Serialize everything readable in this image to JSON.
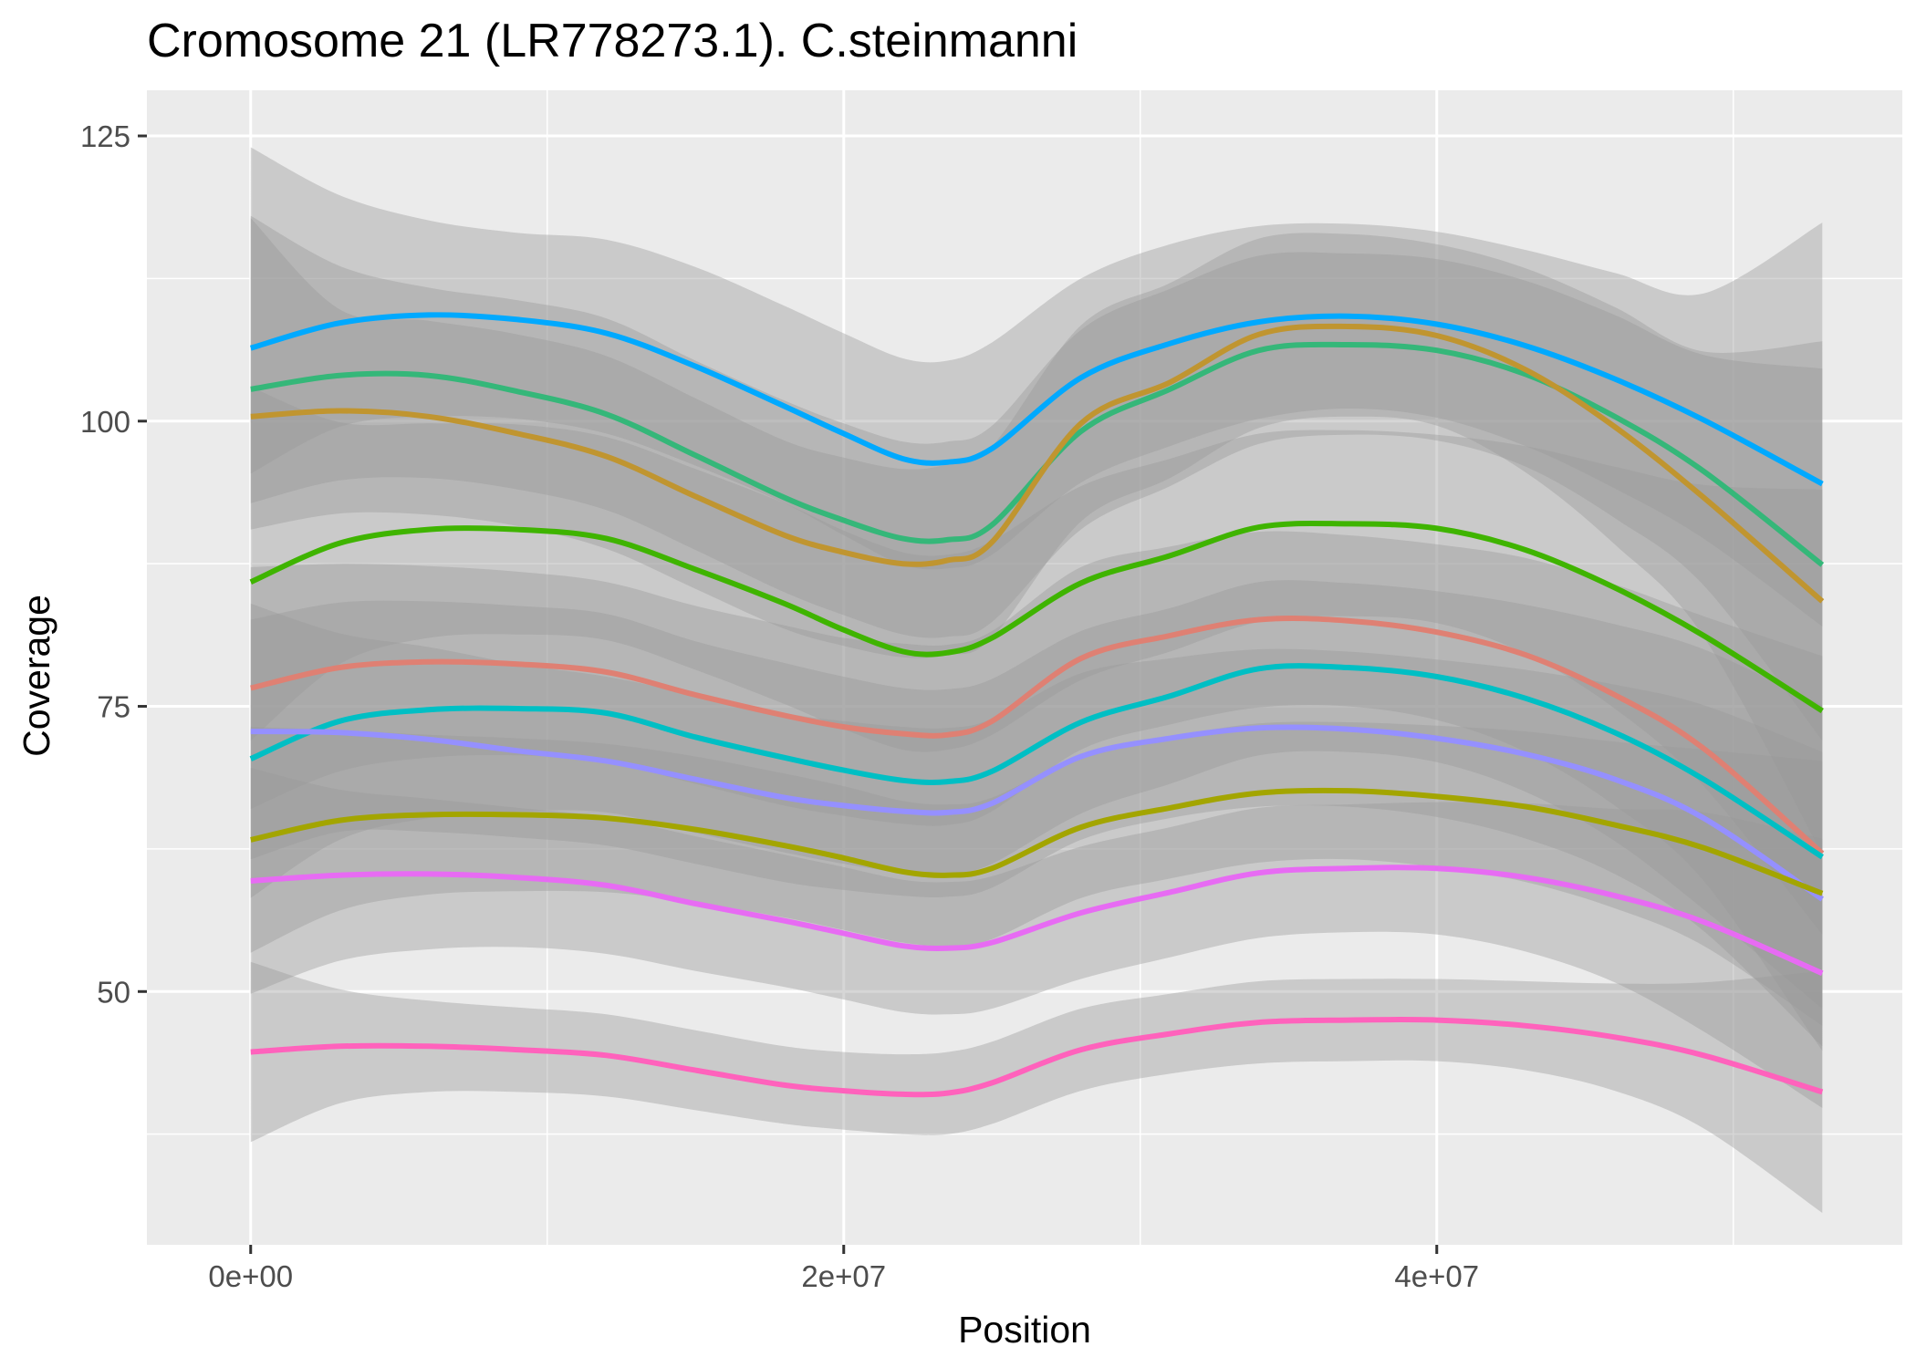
{
  "chart_data": {
    "type": "line",
    "title": "Cromosome 21 (LR778273.1). C.steinmanni",
    "xlabel": "Position",
    "ylabel": "Coverage",
    "xlim": [
      -3500000,
      55700000
    ],
    "ylim": [
      27800,
      129000
    ],
    "y_scale_divisor": 1000,
    "x_ticks": [
      0,
      20000000,
      40000000
    ],
    "x_tick_labels": [
      "0e+00",
      "2e+07",
      "4e+07"
    ],
    "x_minor_ticks": [
      10000000,
      30000000,
      50000000
    ],
    "y_ticks": [
      50000,
      75000,
      100000,
      125000
    ],
    "y_tick_labels": [
      "50",
      "75",
      "100",
      "125"
    ],
    "y_minor_ticks": [
      37500,
      62500,
      87500,
      112500
    ],
    "grid": true,
    "legend": "none",
    "panel_color": "#ebebeb",
    "ribbon_color": "#999999",
    "x": [
      0,
      3000000,
      6000000,
      9000000,
      12000000,
      15000000,
      18000000,
      20000000,
      22000000,
      23500000,
      25000000,
      28000000,
      31000000,
      34000000,
      37000000,
      40000000,
      43000000,
      46000000,
      49000000,
      53000000
    ],
    "series": [
      {
        "color": "#00a9ff",
        "values": [
          106400,
          108600,
          109300,
          108900,
          107700,
          104800,
          101300,
          98900,
          96700,
          96400,
          97600,
          103800,
          106800,
          108700,
          109200,
          108500,
          106600,
          103700,
          100100,
          94500
        ],
        "lower": [
          95400,
          99500,
          100400,
          100200,
          98900,
          96100,
          92800,
          90000,
          87400,
          87100,
          88300,
          94600,
          97800,
          100200,
          101100,
          100300,
          97800,
          94100,
          89700,
          82000
        ],
        "upper": [
          124000,
          119800,
          117600,
          116500,
          115900,
          113500,
          110100,
          107700,
          105500,
          105300,
          106900,
          112500,
          115500,
          117100,
          117300,
          116600,
          115000,
          113000,
          111200,
          117400
        ]
      },
      {
        "color": "#35b779",
        "values": [
          102800,
          104000,
          104000,
          102600,
          100600,
          97000,
          93300,
          91300,
          89700,
          89600,
          90900,
          99100,
          102800,
          106200,
          106700,
          106200,
          104100,
          100400,
          95600,
          87400
        ],
        "lower": [
          92800,
          94800,
          95000,
          94000,
          92200,
          88700,
          85000,
          83000,
          81300,
          81100,
          82400,
          90500,
          94300,
          98000,
          98800,
          98300,
          96000,
          91500,
          85600,
          72000
        ],
        "upper": [
          118000,
          113600,
          111700,
          110600,
          109000,
          105300,
          101800,
          99800,
          98200,
          98200,
          99600,
          108000,
          111600,
          114500,
          114700,
          114200,
          112300,
          109300,
          105800,
          104600
        ]
      },
      {
        "color": "#c09530",
        "values": [
          100400,
          100900,
          100400,
          98900,
          96900,
          93400,
          90000,
          88500,
          87500,
          87800,
          89400,
          99800,
          103400,
          107600,
          108300,
          107500,
          104500,
          99500,
          93300,
          84200
        ],
        "lower": [
          90500,
          91900,
          91800,
          90800,
          88800,
          85300,
          81800,
          80300,
          79300,
          79500,
          81000,
          91200,
          95000,
          99400,
          100400,
          99600,
          95500,
          89200,
          81100,
          62000
        ],
        "upper": [
          117800,
          109800,
          108800,
          107600,
          105700,
          102000,
          98300,
          96800,
          95800,
          96200,
          97800,
          108400,
          112100,
          116000,
          116400,
          115500,
          113400,
          110000,
          106100,
          107000
        ]
      },
      {
        "color": "#3fb400",
        "values": [
          85900,
          89300,
          90500,
          90500,
          89700,
          87000,
          84000,
          81700,
          79800,
          79700,
          81000,
          85800,
          88200,
          90700,
          91000,
          90600,
          88700,
          85400,
          81200,
          74600
        ],
        "lower": [
          72000,
          78700,
          81000,
          81300,
          80800,
          78200,
          75200,
          73000,
          71200,
          71200,
          72500,
          77300,
          79800,
          82400,
          82900,
          82300,
          79600,
          74800,
          68000,
          55000
        ],
        "upper": [
          103000,
          99900,
          99800,
          99700,
          98600,
          95800,
          92800,
          90400,
          88500,
          88300,
          89500,
          94300,
          96700,
          98900,
          99200,
          98800,
          97800,
          96000,
          94400,
          94000
        ]
      },
      {
        "color": "#df8073",
        "values": [
          76600,
          78400,
          78900,
          78700,
          78000,
          76000,
          74200,
          73200,
          72600,
          72500,
          73700,
          79200,
          81200,
          82600,
          82500,
          81500,
          79500,
          76000,
          71300,
          62100
        ],
        "lower": [
          66000,
          69300,
          70500,
          70700,
          70100,
          68200,
          66300,
          65400,
          64700,
          64600,
          65800,
          71200,
          73400,
          74900,
          75000,
          73800,
          71000,
          66300,
          59700,
          44800
        ],
        "upper": [
          87200,
          87500,
          87300,
          86800,
          85900,
          83800,
          82100,
          81000,
          80500,
          80400,
          81600,
          87200,
          89000,
          90300,
          90000,
          89200,
          88000,
          85700,
          82900,
          79400
        ]
      },
      {
        "color": "#00bfc4",
        "values": [
          70400,
          73700,
          74700,
          74800,
          74400,
          72300,
          70500,
          69400,
          68500,
          68400,
          69300,
          73600,
          75900,
          78300,
          78400,
          77600,
          75700,
          72700,
          68600,
          61800
        ],
        "lower": [
          58200,
          63300,
          65200,
          65800,
          65700,
          63900,
          62200,
          61200,
          60400,
          60300,
          61200,
          65600,
          68200,
          70700,
          71000,
          70100,
          67500,
          63200,
          57200,
          48500
        ],
        "upper": [
          82600,
          84100,
          84200,
          83800,
          83100,
          80700,
          78800,
          77600,
          76600,
          76500,
          77400,
          81600,
          83600,
          85900,
          85800,
          85100,
          83900,
          82200,
          80000,
          75100
        ]
      },
      {
        "color": "#9590ff",
        "values": [
          72800,
          72700,
          72100,
          71100,
          70200,
          68600,
          67000,
          66300,
          65800,
          65700,
          66500,
          70600,
          72200,
          73100,
          73000,
          72200,
          70800,
          68600,
          65200,
          58100
        ],
        "lower": [
          61600,
          64000,
          64000,
          63500,
          62800,
          61200,
          59600,
          58900,
          58400,
          58300,
          59100,
          63300,
          65200,
          66200,
          66200,
          65300,
          63400,
          60300,
          55300,
          45200
        ],
        "upper": [
          84000,
          81400,
          80200,
          78700,
          77600,
          76000,
          74400,
          73700,
          73200,
          73100,
          73900,
          77900,
          79200,
          80000,
          79800,
          79100,
          78200,
          76900,
          75100,
          71000
        ]
      },
      {
        "color": "#a3a500",
        "values": [
          63300,
          65000,
          65500,
          65500,
          65200,
          64200,
          62800,
          61700,
          60500,
          60200,
          60800,
          64400,
          66100,
          67400,
          67600,
          67100,
          66200,
          64600,
          62600,
          58600
        ],
        "lower": [
          53400,
          57100,
          58500,
          58800,
          58700,
          57800,
          56500,
          55400,
          54300,
          54000,
          54600,
          58200,
          59900,
          61300,
          61600,
          60900,
          59600,
          57300,
          54000,
          47000
        ],
        "upper": [
          73200,
          72900,
          72500,
          72200,
          71700,
          70600,
          69100,
          68000,
          66700,
          66400,
          67000,
          70600,
          72300,
          73500,
          73600,
          73300,
          72800,
          71900,
          71200,
          70200
        ]
      },
      {
        "color": "#e76bf3",
        "values": [
          59700,
          60200,
          60300,
          60000,
          59300,
          57700,
          56200,
          55100,
          54000,
          53800,
          54300,
          56900,
          58700,
          60400,
          60800,
          60800,
          60000,
          58400,
          56100,
          51600
        ],
        "lower": [
          49800,
          52700,
          53700,
          53900,
          53300,
          51800,
          50400,
          49300,
          48200,
          48000,
          48500,
          51100,
          53000,
          54700,
          55200,
          55000,
          53500,
          50800,
          46500,
          39800
        ],
        "upper": [
          69600,
          67700,
          66900,
          66100,
          65300,
          63600,
          62000,
          60900,
          59800,
          59600,
          60100,
          62700,
          64400,
          66100,
          66400,
          66600,
          66500,
          66000,
          65700,
          63400
        ]
      },
      {
        "color": "#ff62bc",
        "values": [
          44700,
          45200,
          45200,
          44900,
          44400,
          43100,
          41800,
          41300,
          41000,
          41100,
          42000,
          44900,
          46300,
          47300,
          47500,
          47500,
          47000,
          46000,
          44400,
          41200
        ],
        "lower": [
          36800,
          40200,
          41200,
          41200,
          40800,
          39600,
          38400,
          37900,
          37500,
          37500,
          38400,
          41300,
          42800,
          43700,
          43900,
          43900,
          43100,
          41300,
          38000,
          30600
        ],
        "upper": [
          52600,
          50200,
          49200,
          48600,
          48000,
          46600,
          45200,
          44700,
          44500,
          44700,
          45600,
          48500,
          49800,
          50900,
          51100,
          51100,
          50900,
          50700,
          50800,
          51800
        ]
      }
    ]
  }
}
